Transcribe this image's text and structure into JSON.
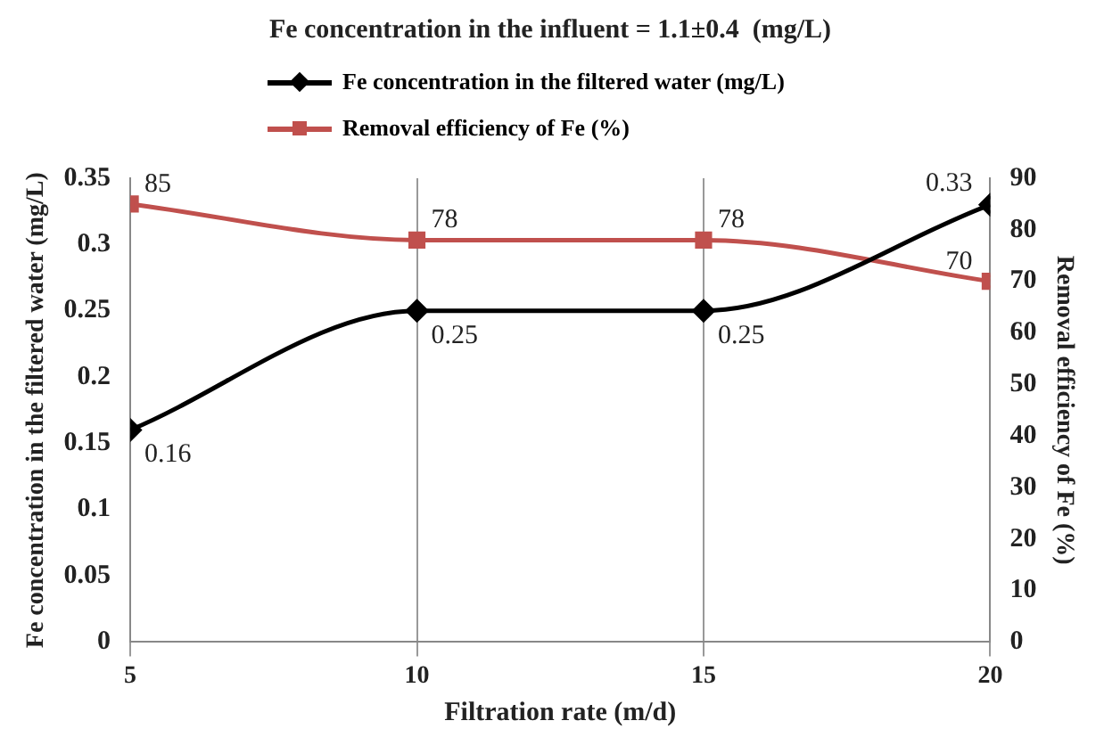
{
  "chart_data": {
    "type": "line",
    "title": "Fe concentration in the influent = 1.1±0.4  (mg/L)",
    "xlabel": "Filtration rate (m/d)",
    "ylabel": "Fe concentration in the filtered water (mg/L)",
    "y2label": "Removal efficiency of Fe (%)",
    "x": [
      5,
      10,
      15,
      20
    ],
    "xlim": [
      5,
      20
    ],
    "xticks": [
      5,
      10,
      15,
      20
    ],
    "ylim": [
      0,
      0.35
    ],
    "yticks": [
      0,
      0.05,
      0.1,
      0.15,
      0.2,
      0.25,
      0.3,
      0.35
    ],
    "y2lim": [
      0,
      90
    ],
    "y2ticks": [
      0,
      10,
      20,
      30,
      40,
      50,
      60,
      70,
      80,
      90
    ],
    "series": [
      {
        "name": "Fe concentration in the filtered water (mg/L)",
        "color": "#000000",
        "marker": "diamond",
        "values": [
          0.16,
          0.25,
          0.25,
          0.33
        ]
      },
      {
        "name": "Removal efficiency of Fe (%)",
        "color": "#c0504d",
        "marker": "square",
        "axis": "y2",
        "values": [
          85,
          78,
          78,
          70
        ]
      }
    ],
    "grid": "x",
    "legend": "top",
    "data_labels": true
  }
}
